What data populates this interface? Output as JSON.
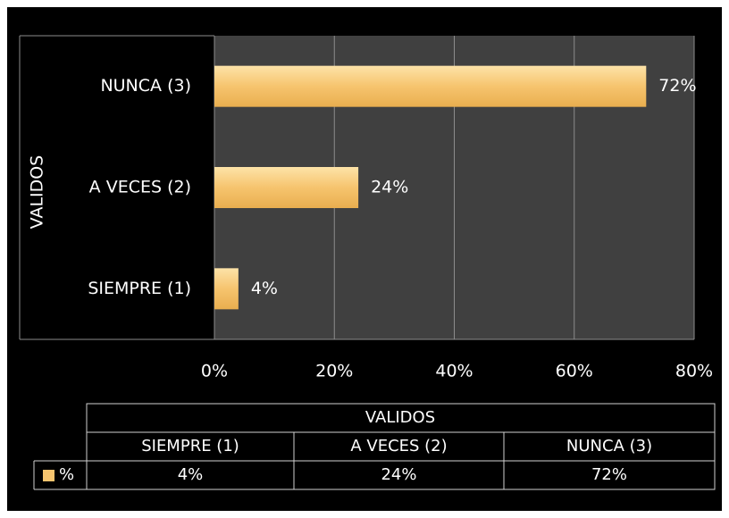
{
  "chart_data": {
    "type": "bar",
    "orientation": "horizontal",
    "y_label": "VALIDOS",
    "table_title": "VALIDOS",
    "categories": [
      "SIEMPRE (1)",
      "A VECES (2)",
      "NUNCA (3)"
    ],
    "series": [
      {
        "name": "%",
        "color": "#f6c46e",
        "values": [
          4,
          24,
          72
        ],
        "value_labels": [
          "4%",
          "24%",
          "72%"
        ]
      }
    ],
    "xlim": [
      0,
      80
    ],
    "xticks": [
      {
        "value": 0,
        "label": "0%"
      },
      {
        "value": 20,
        "label": "20%"
      },
      {
        "value": 40,
        "label": "40%"
      },
      {
        "value": 60,
        "label": "60%"
      },
      {
        "value": 80,
        "label": "80%"
      }
    ],
    "grid": true
  }
}
